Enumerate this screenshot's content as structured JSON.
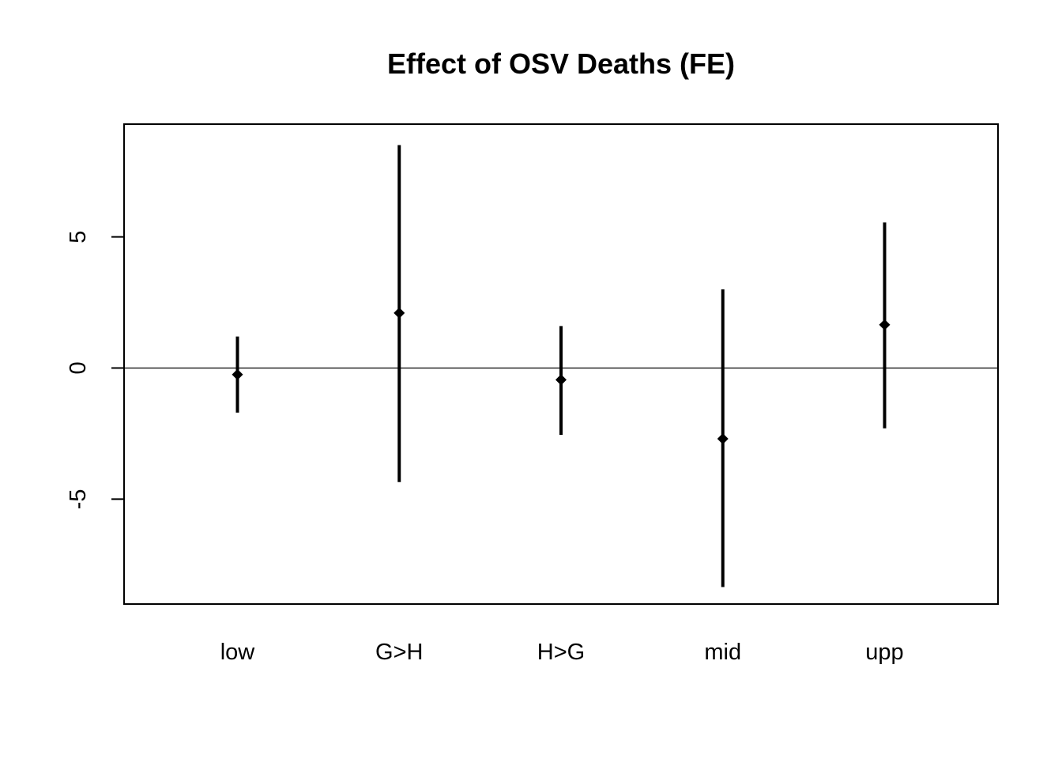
{
  "chart_data": {
    "type": "errorbar",
    "title": "Effect of OSV Deaths (FE)",
    "xlabel": "",
    "ylabel": "",
    "categories": [
      "low",
      "G>H",
      "H>G",
      "mid",
      "upp"
    ],
    "estimates": [
      -0.25,
      2.1,
      -0.45,
      -2.7,
      1.65
    ],
    "lower": [
      -1.7,
      -4.35,
      -2.55,
      -8.35,
      -2.3
    ],
    "upper": [
      1.2,
      8.5,
      1.6,
      3.0,
      5.55
    ],
    "yticks": [
      -5,
      0,
      5
    ],
    "ylim": [
      -9,
      9.3
    ],
    "reference_line": 0,
    "grid": false,
    "legend": "none",
    "colors": {
      "bars": "#000000",
      "points": "#000000",
      "reference": "#000000"
    }
  }
}
